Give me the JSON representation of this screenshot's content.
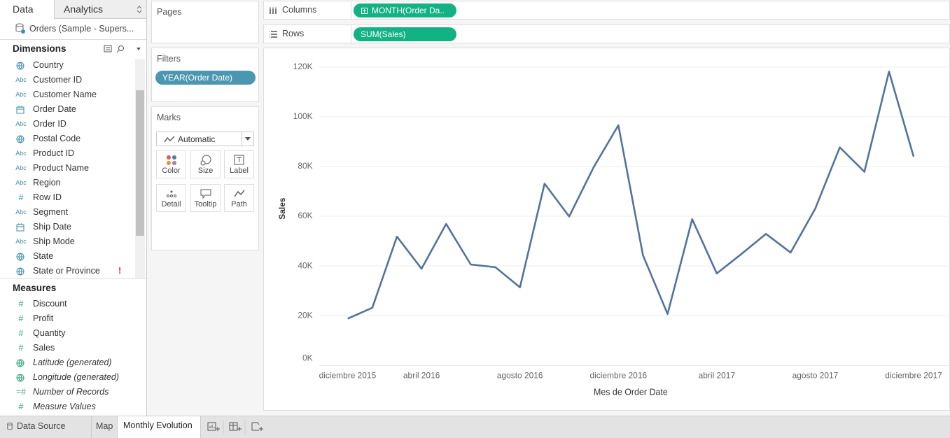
{
  "sidebar": {
    "tabs": [
      "Data",
      "Analytics"
    ],
    "datasource": "Orders (Sample - Supers...",
    "dimensions_title": "Dimensions",
    "dimensions": [
      {
        "icon": "geo",
        "name": "Country"
      },
      {
        "icon": "Abc",
        "name": "Customer ID"
      },
      {
        "icon": "Abc",
        "name": "Customer Name"
      },
      {
        "icon": "date",
        "name": "Order Date"
      },
      {
        "icon": "Abc",
        "name": "Order ID"
      },
      {
        "icon": "geo",
        "name": "Postal Code"
      },
      {
        "icon": "Abc",
        "name": "Product ID"
      },
      {
        "icon": "Abc",
        "name": "Product Name"
      },
      {
        "icon": "Abc",
        "name": "Region"
      },
      {
        "icon": "#",
        "name": "Row ID"
      },
      {
        "icon": "Abc",
        "name": "Segment"
      },
      {
        "icon": "date",
        "name": "Ship Date"
      },
      {
        "icon": "Abc",
        "name": "Ship Mode"
      },
      {
        "icon": "geo",
        "name": "State"
      },
      {
        "icon": "geo",
        "name": "State or Province",
        "flag": "!"
      }
    ],
    "measures_title": "Measures",
    "measures": [
      {
        "icon": "#",
        "name": "Discount"
      },
      {
        "icon": "#",
        "name": "Profit"
      },
      {
        "icon": "#",
        "name": "Quantity"
      },
      {
        "icon": "#",
        "name": "Sales"
      },
      {
        "icon": "geo",
        "name": "Latitude (generated)",
        "italic": true
      },
      {
        "icon": "geo",
        "name": "Longitude (generated)",
        "italic": true
      },
      {
        "icon": "=#",
        "name": "Number of Records",
        "italic": true
      },
      {
        "icon": "#",
        "name": "Measure Values",
        "italic": true
      }
    ]
  },
  "cards": {
    "pages": "Pages",
    "filters": "Filters",
    "filter_pill": "YEAR(Order Date)",
    "marks": "Marks",
    "mark_type": "Automatic",
    "mark_buttons": [
      "Color",
      "Size",
      "Label",
      "Detail",
      "Tooltip",
      "Path"
    ]
  },
  "shelves": {
    "columns_label": "Columns",
    "columns_pill": "MONTH(Order Da..",
    "rows_label": "Rows",
    "rows_pill": "SUM(Sales)"
  },
  "tabs": [
    "Data Source",
    "Map",
    "Monthly Evolution"
  ],
  "chart_data": {
    "type": "line",
    "y_label": "Sales",
    "x_label": "Mes de Order Date",
    "color": "#53739b",
    "x": [
      "2016-01",
      "2016-02",
      "2016-03",
      "2016-04",
      "2016-05",
      "2016-06",
      "2016-07",
      "2016-08",
      "2016-09",
      "2016-10",
      "2016-11",
      "2016-12",
      "2017-01",
      "2017-02",
      "2017-03",
      "2017-04",
      "2017-05",
      "2017-06",
      "2017-07",
      "2017-08",
      "2017-09",
      "2017-10",
      "2017-11",
      "2017-12"
    ],
    "values": [
      18800,
      23200,
      51800,
      38900,
      56900,
      40600,
      39500,
      31400,
      73100,
      59900,
      79800,
      96600,
      44300,
      20700,
      58800,
      37000,
      44800,
      52900,
      45400,
      63000,
      87700,
      77900,
      118200,
      84000
    ],
    "xlim": [
      "2015-12",
      "2018-01"
    ],
    "xticks": [
      {
        "value": "2015-12",
        "label": "diciembre 2015"
      },
      {
        "value": "2016-04",
        "label": "abril 2016"
      },
      {
        "value": "2016-08",
        "label": "agosto 2016"
      },
      {
        "value": "2016-12",
        "label": "diciembre 2016"
      },
      {
        "value": "2017-04",
        "label": "abril 2017"
      },
      {
        "value": "2017-08",
        "label": "agosto 2017"
      },
      {
        "value": "2017-12",
        "label": "diciembre 2017"
      }
    ],
    "ylim": [
      0,
      127000
    ],
    "yticks": [
      {
        "value": 0,
        "label": "0K"
      },
      {
        "value": 20000,
        "label": "20K"
      },
      {
        "value": 40000,
        "label": "40K"
      },
      {
        "value": 60000,
        "label": "60K"
      },
      {
        "value": 80000,
        "label": "80K"
      },
      {
        "value": 100000,
        "label": "100K"
      },
      {
        "value": 120000,
        "label": "120K"
      }
    ],
    "grid": true
  }
}
